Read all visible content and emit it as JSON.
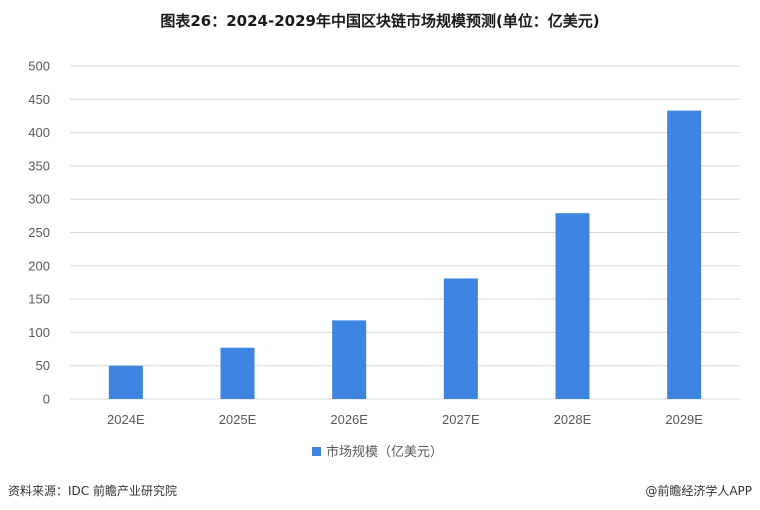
{
  "chart_data": {
    "type": "bar",
    "title": "图表26：2024-2029年中国区块链市场规模预测(单位：亿美元)",
    "categories": [
      "2024E",
      "2025E",
      "2026E",
      "2027E",
      "2028E",
      "2029E"
    ],
    "series": [
      {
        "name": "市场规模（亿美元）",
        "values": [
          50,
          77,
          118,
          181,
          279,
          433
        ],
        "color": "#3d85e0"
      }
    ],
    "ylim": [
      0,
      500
    ],
    "yticks": [
      0,
      50,
      100,
      150,
      200,
      250,
      300,
      350,
      400,
      450,
      500
    ],
    "xlabel": "",
    "ylabel": "",
    "grid": true,
    "legend": "bottom-center"
  },
  "footer": {
    "source": "资料来源：IDC 前瞻产业研究院",
    "brand": "@前瞻经济学人APP"
  },
  "colors": {
    "bar": "#3d85e0",
    "grid": "#d9d9d9",
    "axis_text": "#595959"
  }
}
